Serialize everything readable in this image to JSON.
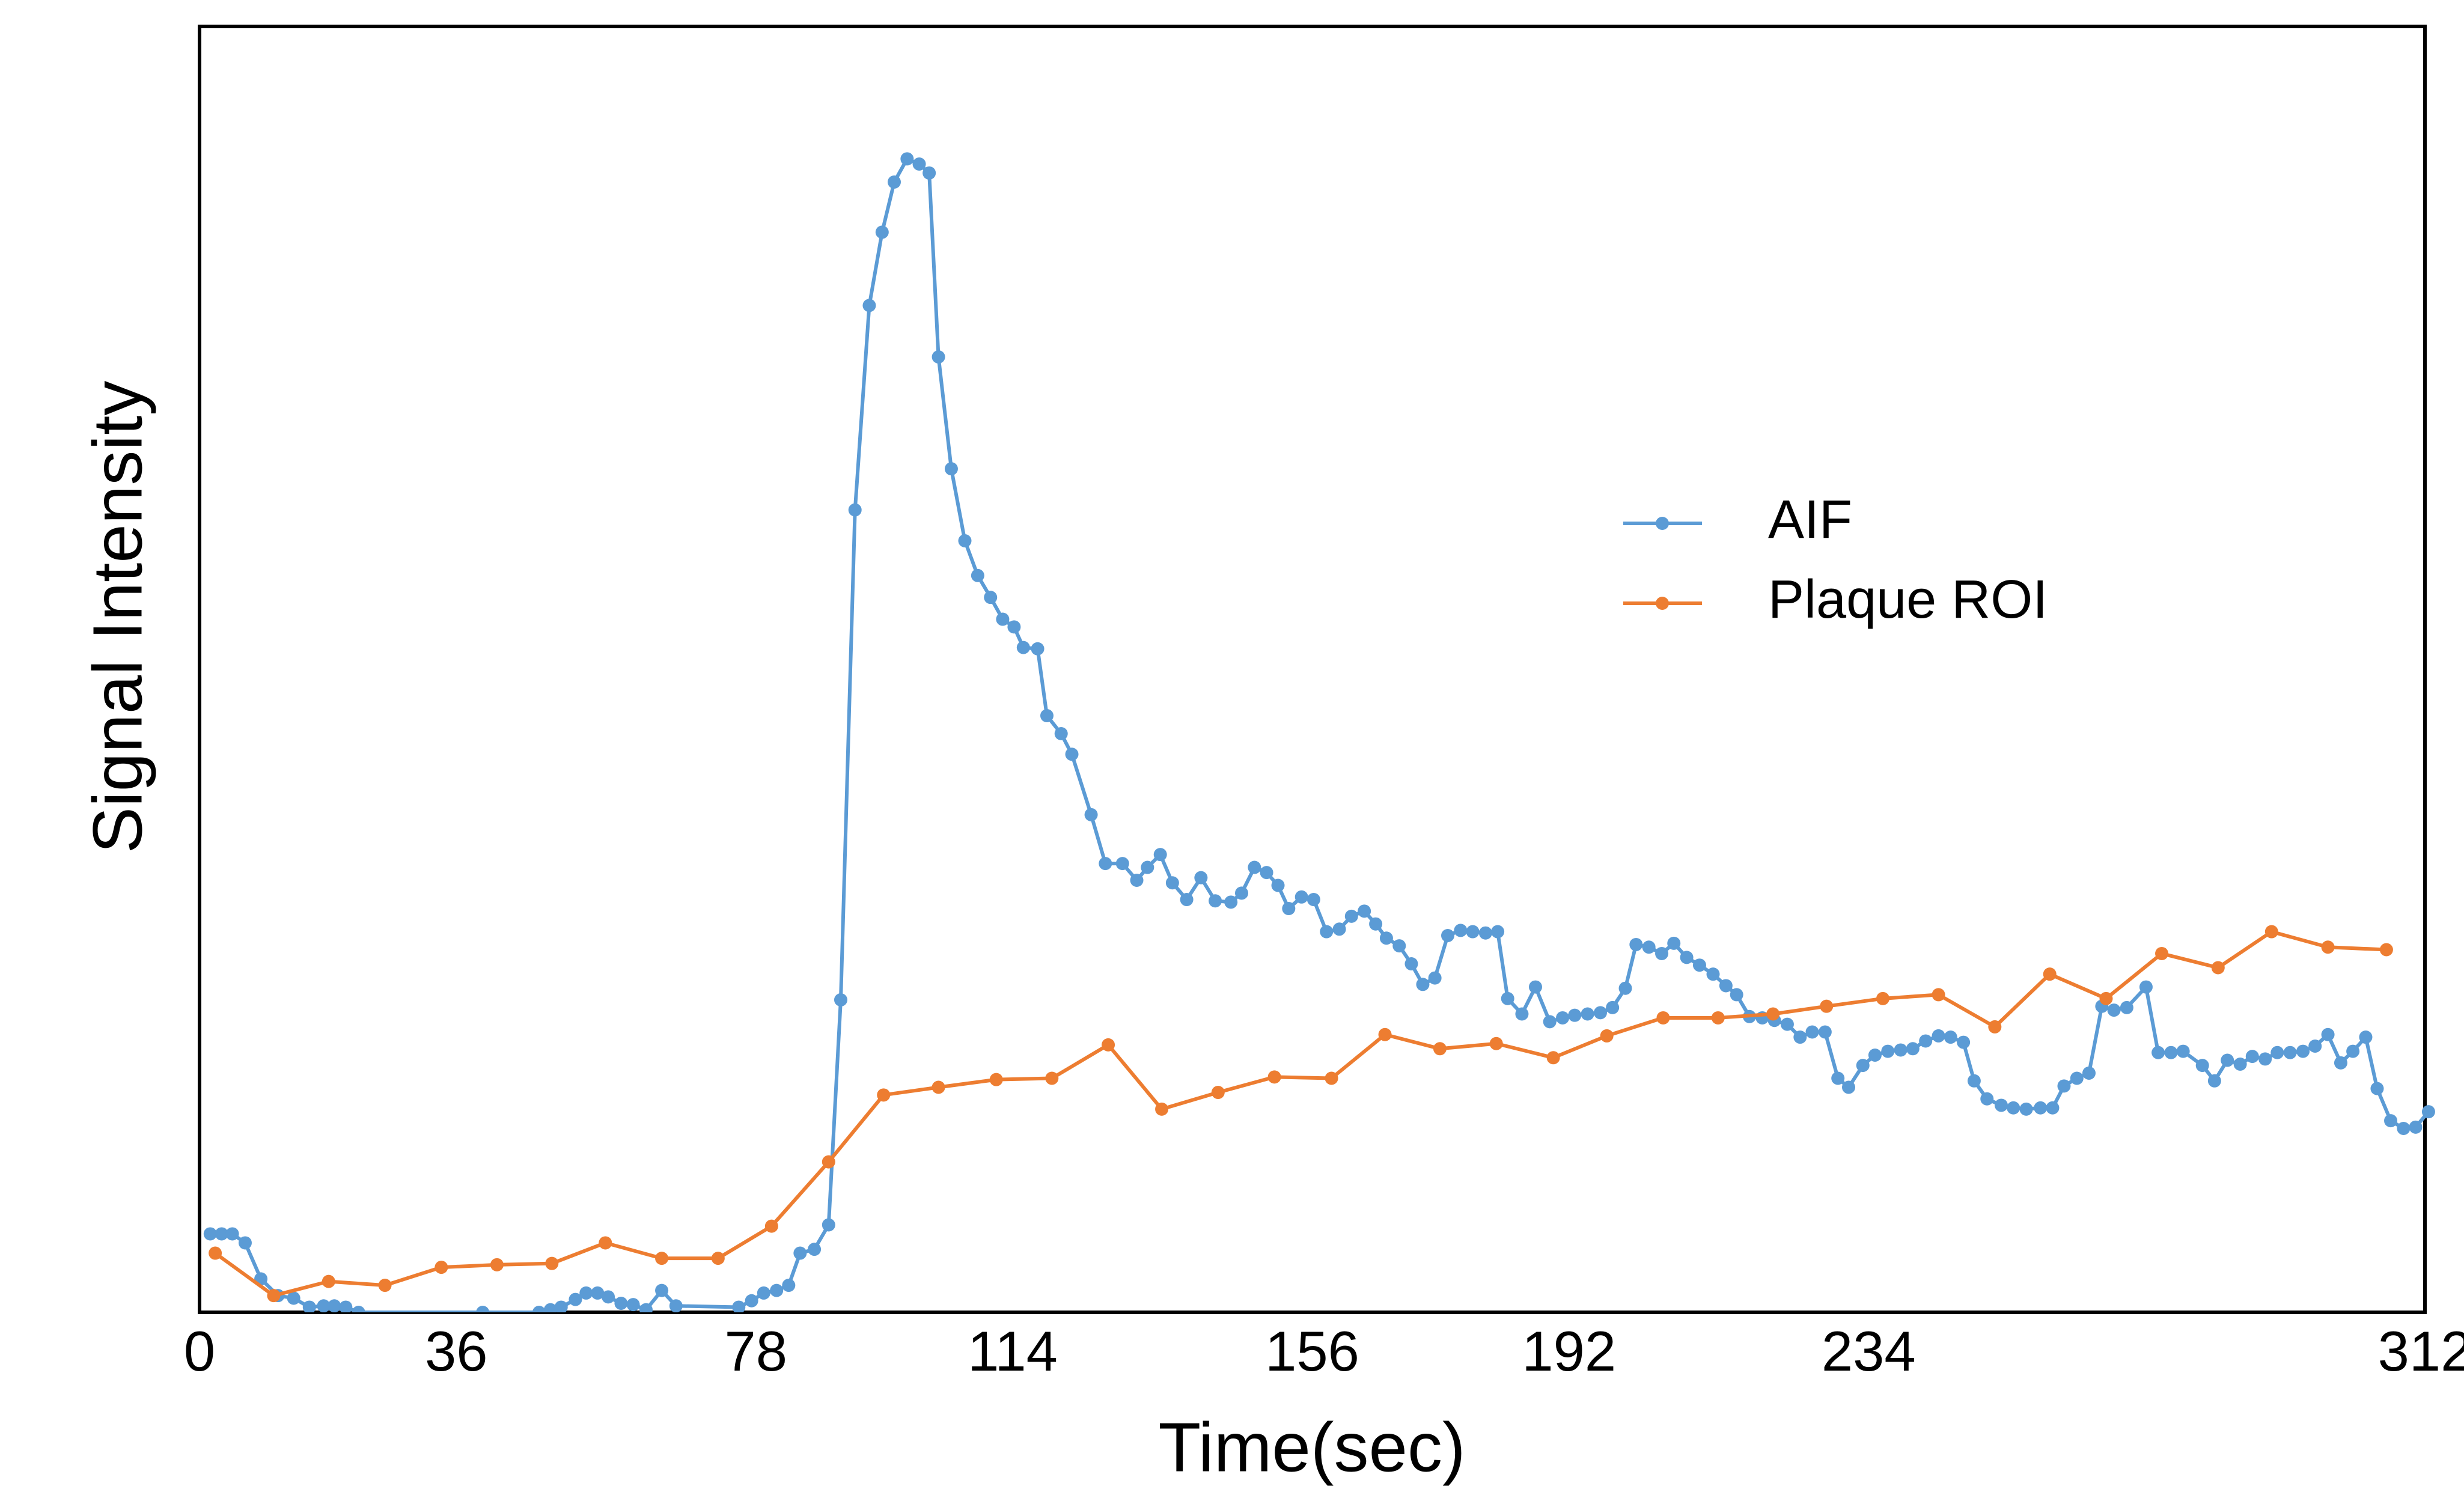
{
  "chart_data": {
    "type": "line",
    "x_label": "Time(sec)",
    "y_label": "Signal Intensity",
    "xlim": [
      0,
      312
    ],
    "xticks": [
      0,
      36,
      78,
      114,
      156,
      192,
      234,
      312
    ],
    "ylim": [
      0,
      100
    ],
    "yticks": [],
    "grid": false,
    "legend": "center right",
    "series": [
      {
        "name": "AIF",
        "color": "#5b9bd5",
        "x": [
          1.5,
          3.1,
          4.6,
          6.4,
          8.6,
          11.0,
          13.2,
          15.4,
          17.4,
          18.9,
          20.5,
          22.3,
          39.7,
          47.6,
          49.2,
          50.7,
          52.7,
          54.2,
          55.8,
          57.3,
          59.1,
          60.8,
          62.6,
          64.8,
          66.8,
          75.6,
          77.4,
          79.1,
          80.9,
          82.6,
          84.2,
          86.2,
          88.2,
          89.9,
          91.9,
          93.9,
          95.7,
          97.4,
          99.2,
          100.9,
          102.3,
          103.6,
          105.4,
          107.3,
          109.1,
          110.9,
          112.6,
          114.2,
          115.5,
          117.5,
          118.8,
          120.8,
          122.3,
          125.0,
          127.0,
          129.4,
          131.4,
          132.9,
          134.7,
          136.4,
          138.4,
          140.4,
          142.4,
          144.6,
          146.1,
          147.9,
          149.6,
          151.2,
          152.7,
          154.5,
          156.2,
          158.0,
          159.8,
          161.5,
          163.3,
          164.9,
          166.4,
          168.2,
          169.9,
          171.5,
          173.2,
          175.0,
          176.8,
          178.5,
          180.3,
          182.0,
          183.4,
          185.4,
          187.3,
          189.3,
          191.1,
          192.8,
          194.6,
          196.4,
          198.1,
          199.9,
          201.4,
          203.2,
          205.0,
          206.7,
          208.5,
          210.3,
          212.2,
          214.0,
          215.5,
          217.3,
          219.1,
          220.8,
          222.6,
          224.4,
          226.1,
          227.9,
          229.7,
          231.2,
          233.2,
          234.9,
          236.7,
          238.5,
          240.2,
          242.0,
          243.8,
          245.5,
          247.3,
          248.8,
          250.6,
          252.6,
          254.3,
          256.1,
          258.1,
          259.8,
          261.4,
          263.2,
          264.9,
          266.7,
          268.4,
          270.2,
          272.9,
          274.6,
          276.4,
          278.1,
          280.8,
          282.5,
          284.3,
          286.1,
          287.8,
          289.6,
          291.3,
          293.1,
          294.9,
          296.6,
          298.4,
          300.2,
          301.9,
          303.7,
          305.3,
          307.2,
          309.0,
          310.7,
          312.5
        ],
        "values": [
          6.1,
          6.1,
          6.1,
          5.4,
          2.6,
          1.3,
          1.1,
          0.4,
          0.5,
          0.5,
          0.4,
          0,
          0,
          0,
          0.2,
          0.4,
          1.0,
          1.5,
          1.5,
          1.2,
          0.7,
          0.6,
          0.2,
          1.7,
          0.5,
          0.4,
          0.9,
          1.5,
          1.7,
          2.1,
          4.6,
          4.9,
          6.8,
          24.3,
          62.4,
          78.3,
          84.0,
          87.9,
          89.7,
          89.3,
          88.6,
          74.3,
          65.6,
          60.0,
          57.3,
          55.6,
          53.9,
          53.3,
          51.7,
          51.6,
          46.4,
          45.0,
          43.4,
          38.7,
          34.9,
          34.9,
          33.6,
          34.6,
          35.6,
          33.4,
          32.1,
          33.8,
          32.0,
          31.9,
          32.6,
          34.6,
          34.2,
          33.2,
          31.4,
          32.3,
          32.1,
          29.6,
          29.8,
          30.8,
          31.2,
          30.2,
          29.1,
          28.5,
          27.1,
          25.5,
          26.0,
          29.3,
          29.7,
          29.6,
          29.5,
          29.6,
          24.4,
          23.2,
          25.3,
          22.6,
          22.9,
          23.1,
          23.2,
          23.3,
          23.7,
          25.2,
          28.6,
          28.4,
          27.9,
          28.7,
          27.6,
          27.0,
          26.3,
          25.4,
          24.7,
          23.0,
          22.9,
          22.7,
          22.4,
          21.4,
          21.8,
          21.8,
          18.2,
          17.5,
          19.2,
          20.0,
          20.3,
          20.4,
          20.5,
          21.1,
          21.5,
          21.4,
          21.0,
          18.0,
          16.6,
          16.1,
          15.9,
          15.8,
          15.9,
          15.9,
          17.6,
          18.2,
          18.6,
          23.8,
          23.5,
          23.7,
          25.3,
          20.2,
          20.2,
          20.3,
          19.2,
          18.0,
          19.6,
          19.3,
          19.9,
          19.7,
          20.2,
          20.2,
          20.3,
          20.7,
          21.6,
          19.4,
          20.3,
          21.4,
          17.4,
          14.9,
          14.3,
          14.4,
          15.6
        ]
      },
      {
        "name": "Plaque ROI",
        "color": "#ed7d31",
        "x": [
          2.2,
          10.4,
          18.1,
          26.0,
          33.9,
          41.7,
          49.4,
          56.9,
          64.8,
          72.7,
          80.2,
          88.2,
          95.9,
          103.6,
          111.7,
          119.5,
          127.4,
          134.9,
          142.8,
          150.7,
          158.7,
          166.2,
          173.9,
          181.8,
          189.8,
          197.3,
          205.2,
          212.9,
          220.6,
          228.1,
          236.0,
          243.8,
          251.7,
          259.4,
          267.3,
          275.1,
          283.0,
          290.5,
          298.4,
          306.6
        ],
        "values": [
          4.6,
          1.3,
          2.4,
          2.1,
          3.5,
          3.7,
          3.8,
          5.4,
          4.2,
          4.2,
          6.7,
          11.7,
          16.9,
          17.5,
          18.1,
          18.2,
          20.8,
          15.8,
          17.1,
          18.3,
          18.2,
          21.6,
          20.5,
          20.9,
          19.8,
          21.5,
          22.9,
          22.9,
          23.2,
          23.8,
          24.4,
          24.7,
          22.2,
          26.3,
          24.4,
          27.9,
          26.8,
          29.6,
          28.4,
          28.2
        ]
      }
    ]
  }
}
